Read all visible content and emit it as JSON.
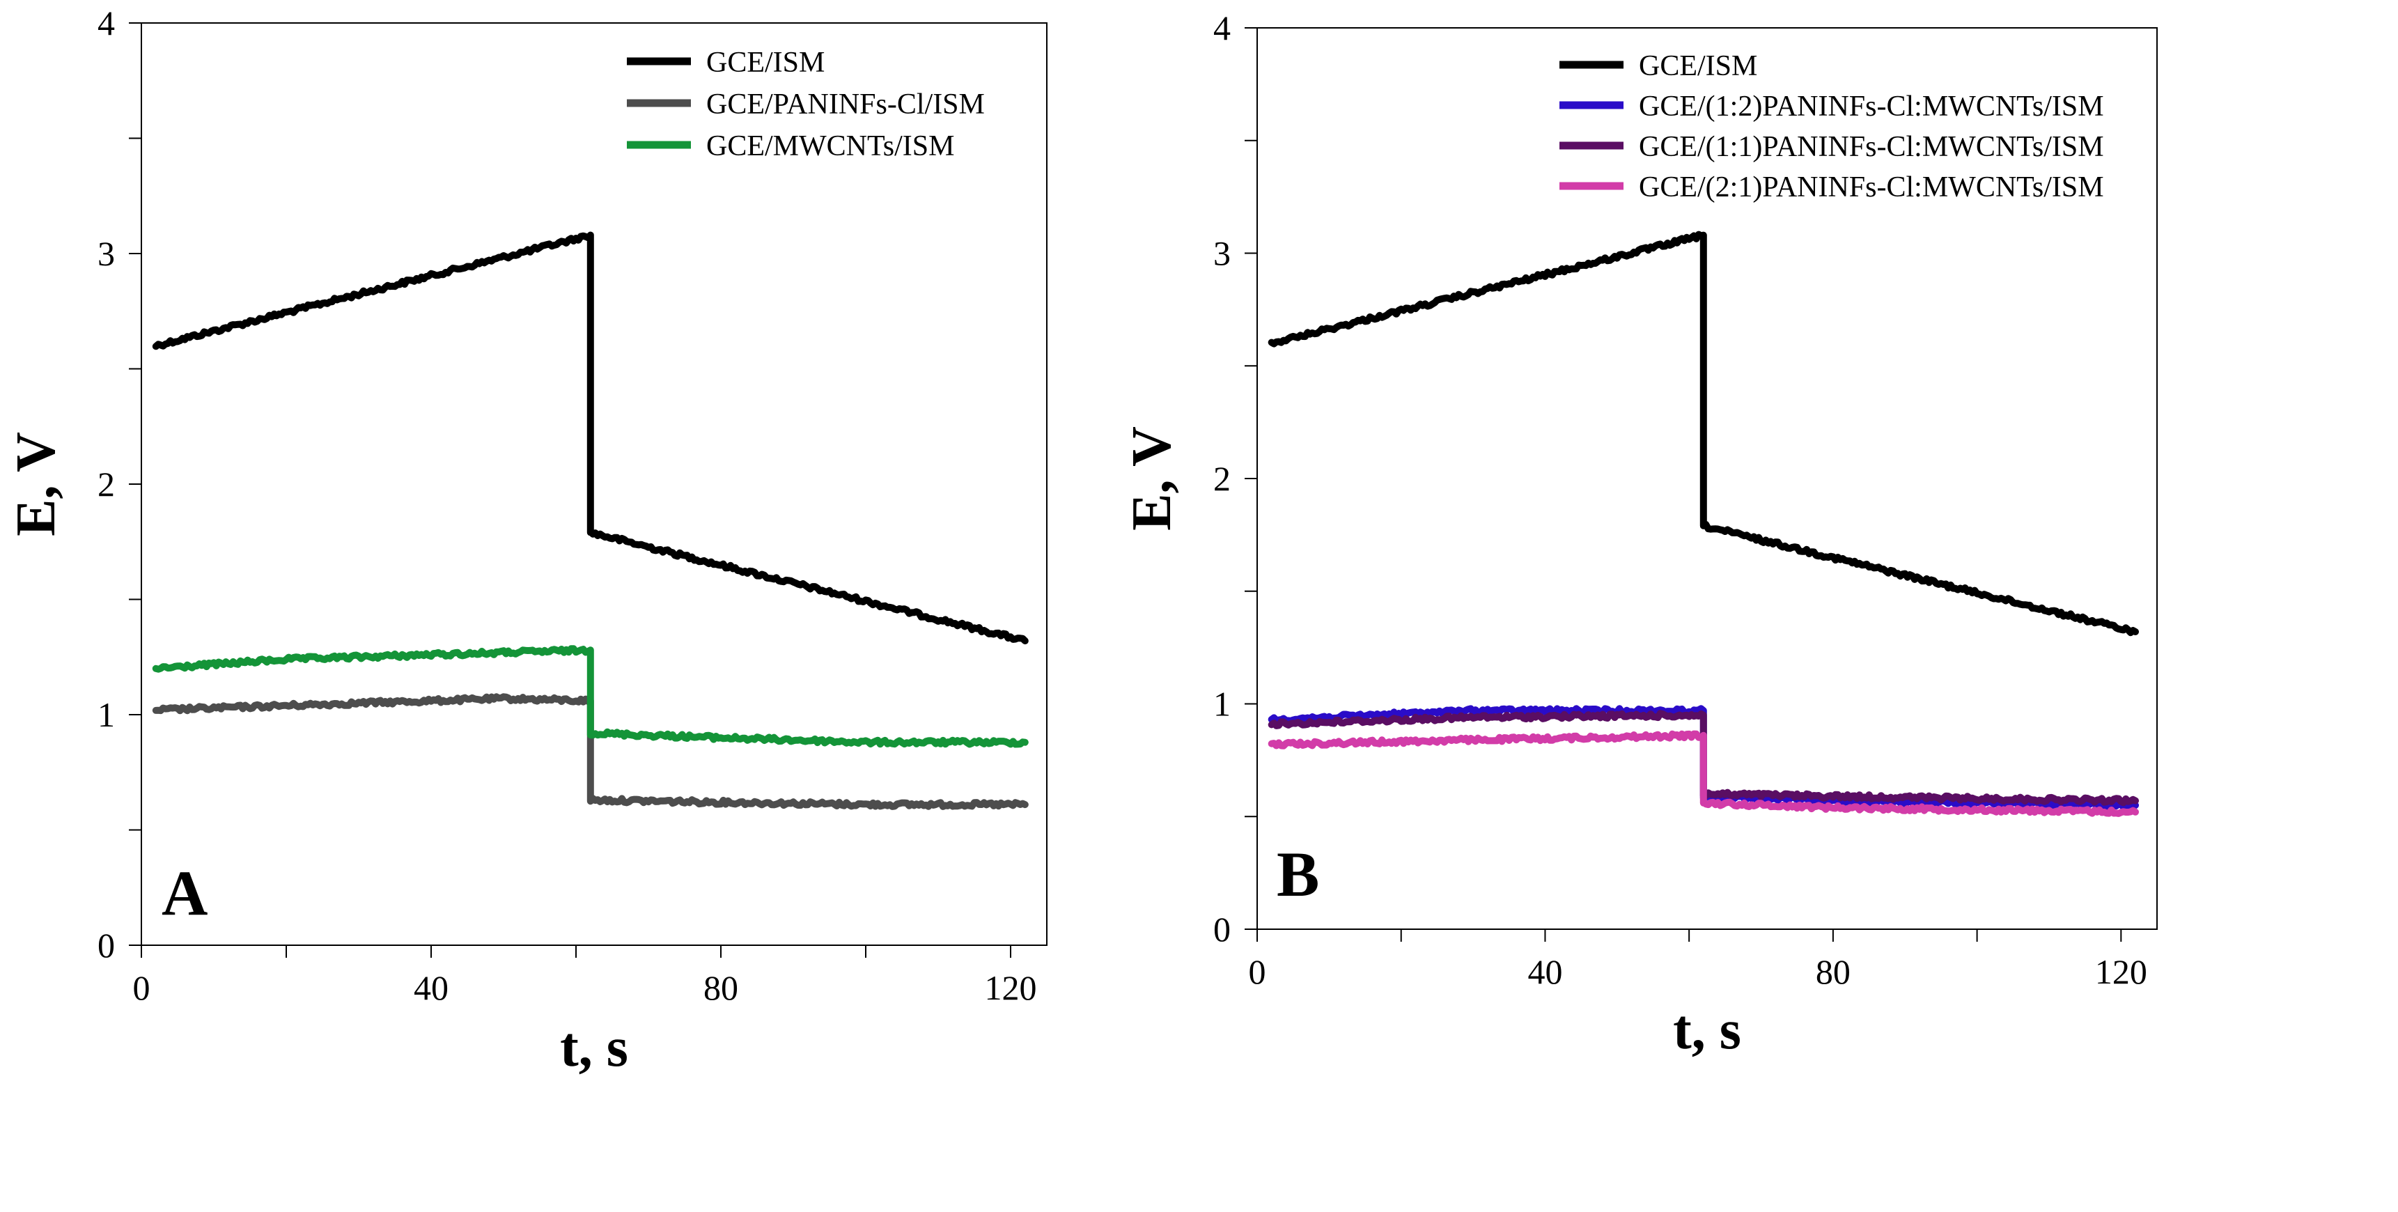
{
  "chart_data": [
    {
      "type": "line",
      "panel_label": "A",
      "xlabel": "t, s",
      "ylabel": "E, V",
      "xlim": [
        0,
        125
      ],
      "ylim": [
        0,
        4
      ],
      "x_ticks": [
        0,
        40,
        80,
        120
      ],
      "x_minor_ticks": [
        20,
        60,
        100
      ],
      "y_ticks": [
        0,
        1,
        2,
        3,
        4
      ],
      "y_minor_ticks": [
        0.5,
        1.5,
        2.5,
        3.5
      ],
      "legend_position": "top-right",
      "series": [
        {
          "name": "GCE/ISM",
          "color": "#000000",
          "x": [
            2,
            62,
            62,
            122
          ],
          "y": [
            2.6,
            3.08,
            1.79,
            1.32
          ]
        },
        {
          "name": "GCE/PANINFs-Cl/ISM",
          "color": "#4d4d4d",
          "x": [
            2,
            30,
            50,
            62,
            62,
            80,
            100,
            122
          ],
          "y": [
            1.02,
            1.05,
            1.07,
            1.06,
            0.63,
            0.62,
            0.61,
            0.61
          ]
        },
        {
          "name": "GCE/MWCNTs/ISM",
          "color": "#149438",
          "x": [
            2,
            20,
            40,
            62,
            62,
            80,
            100,
            122
          ],
          "y": [
            1.2,
            1.24,
            1.26,
            1.28,
            0.92,
            0.9,
            0.88,
            0.88
          ]
        }
      ]
    },
    {
      "type": "line",
      "panel_label": "B",
      "xlabel": "t, s",
      "ylabel": "E, V",
      "xlim": [
        0,
        125
      ],
      "ylim": [
        0,
        4
      ],
      "x_ticks": [
        0,
        40,
        80,
        120
      ],
      "x_minor_ticks": [
        20,
        60,
        100
      ],
      "y_ticks": [
        0,
        1,
        2,
        3,
        4
      ],
      "y_minor_ticks": [
        0.5,
        1.5,
        2.5,
        3.5
      ],
      "legend_position": "top-right",
      "series": [
        {
          "name": "GCE/ISM",
          "color": "#000000",
          "x": [
            2,
            62,
            62,
            122
          ],
          "y": [
            2.6,
            3.08,
            1.79,
            1.32
          ]
        },
        {
          "name": "GCE/(1:2)PANINFs-Cl:MWCNTs/ISM",
          "color": "#2a0cc8",
          "x": [
            2,
            30,
            62,
            62,
            80,
            100,
            122
          ],
          "y": [
            0.93,
            0.97,
            0.97,
            0.59,
            0.57,
            0.56,
            0.55
          ]
        },
        {
          "name": "GCE/(1:1)PANINFs-Cl:MWCNTs/ISM",
          "color": "#5a0e63",
          "x": [
            2,
            30,
            62,
            62,
            80,
            100,
            122
          ],
          "y": [
            0.91,
            0.94,
            0.95,
            0.6,
            0.59,
            0.58,
            0.57
          ]
        },
        {
          "name": "GCE/(2:1)PANINFs-Cl:MWCNTs/ISM",
          "color": "#d23ca8",
          "x": [
            2,
            30,
            62,
            62,
            80,
            100,
            122
          ],
          "y": [
            0.82,
            0.84,
            0.86,
            0.56,
            0.54,
            0.53,
            0.52
          ]
        }
      ]
    }
  ]
}
